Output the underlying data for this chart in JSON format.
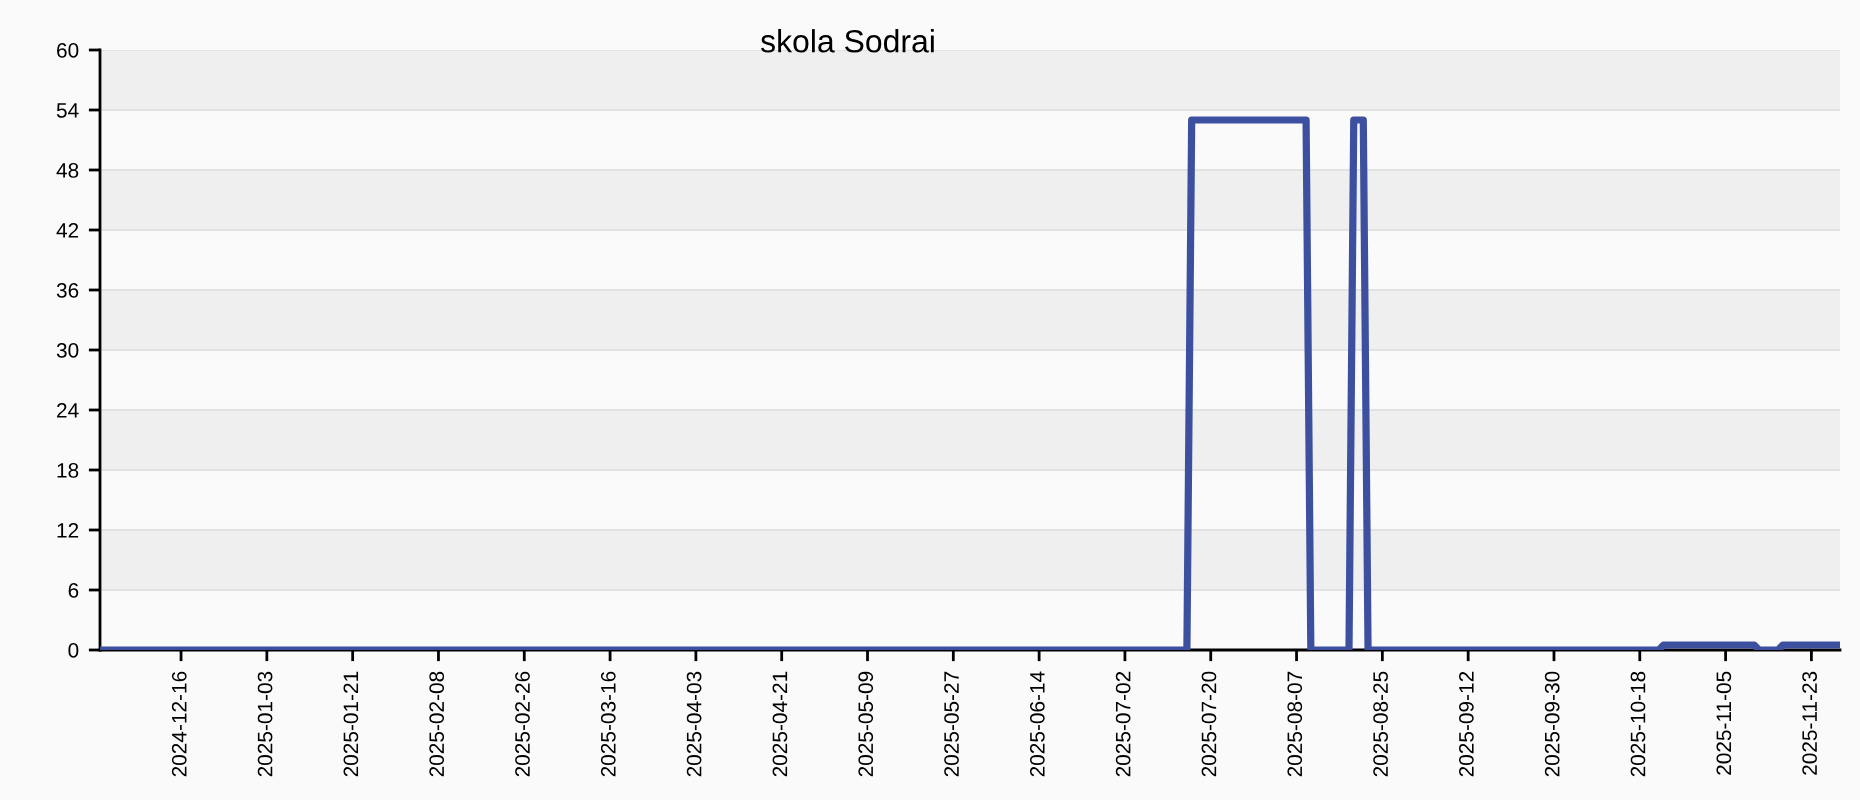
{
  "chart_data": {
    "type": "line",
    "title": "skola Sodrai",
    "series": [
      {
        "color": "#3d50a0",
        "x": [
          "2024-11-29",
          "2025-07-15",
          "2025-07-16",
          "2025-08-09",
          "2025-08-10",
          "2025-08-18",
          "2025-08-19",
          "2025-08-21",
          "2025-08-22",
          "2025-10-22",
          "2025-10-23",
          "2025-11-11",
          "2025-11-12",
          "2025-11-16",
          "2025-11-17",
          "2025-11-29"
        ],
        "values": [
          0,
          0,
          53,
          53,
          0,
          0,
          53,
          53,
          0,
          0,
          0.5,
          0.5,
          0,
          0,
          0.5,
          0.5
        ]
      }
    ],
    "xlim": [
      "2024-11-29",
      "2025-11-29"
    ],
    "xticks": [
      "2024-12-16",
      "2025-01-03",
      "2025-01-21",
      "2025-02-08",
      "2025-02-26",
      "2025-03-16",
      "2025-04-03",
      "2025-04-21",
      "2025-05-09",
      "2025-05-27",
      "2025-06-14",
      "2025-07-02",
      "2025-07-20",
      "2025-08-07",
      "2025-08-25",
      "2025-09-12",
      "2025-09-30",
      "2025-10-18",
      "2025-11-05",
      "2025-11-23"
    ],
    "ylim": [
      0,
      60
    ],
    "yticks": [
      0,
      6,
      12,
      18,
      24,
      30,
      36,
      42,
      48,
      54,
      60
    ],
    "grid": "y",
    "legend": false,
    "marker": "none",
    "line_style": "solid"
  }
}
